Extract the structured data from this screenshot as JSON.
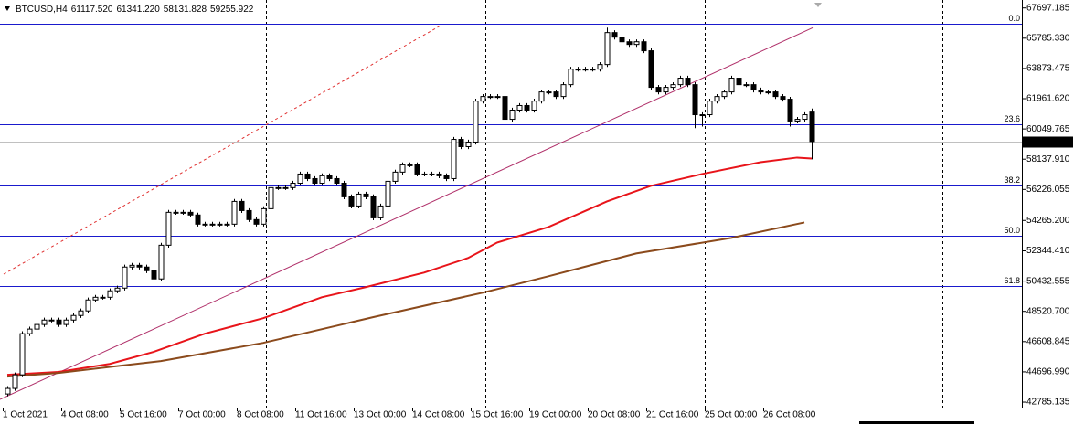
{
  "chart_data": {
    "type": "candlestick",
    "symbol": "BTCUSD,H4",
    "header_values": [
      {
        "value": 61117.52,
        "label": "61117.520"
      },
      {
        "value": 61341.22,
        "label": "61341.220"
      },
      {
        "value": 58131.828,
        "label": "58131.828"
      },
      {
        "value": 59255.922,
        "label": "59255.922"
      }
    ],
    "categories": [
      "1 Oct 2021",
      null,
      null,
      null,
      null,
      null,
      null,
      null,
      "4 Oct 08:00",
      null,
      null,
      null,
      null,
      null,
      null,
      null,
      "5 Oct 16:00",
      null,
      null,
      null,
      null,
      null,
      null,
      null,
      "7 Oct 00:00",
      null,
      null,
      null,
      null,
      null,
      null,
      null,
      "8 Oct 08:00",
      null,
      null,
      null,
      null,
      null,
      null,
      null,
      "11 Oct 16:00",
      null,
      null,
      null,
      null,
      null,
      null,
      null,
      "13 Oct 00:00",
      null,
      null,
      null,
      null,
      null,
      null,
      null,
      "14 Oct 08:00",
      null,
      null,
      null,
      null,
      null,
      null,
      null,
      "15 Oct 16:00",
      null,
      null,
      null,
      null,
      null,
      null,
      null,
      "19 Oct 00:00",
      null,
      null,
      null,
      null,
      null,
      null,
      null,
      "20 Oct 08:00",
      null,
      null,
      null,
      null,
      null,
      null,
      null,
      "21 Oct 16:00",
      null,
      null,
      null,
      null,
      null,
      null,
      null,
      "25 Oct 00:00",
      null,
      null,
      null,
      null,
      null,
      null,
      null,
      "26 Oct 08:00",
      null,
      null,
      null,
      null,
      null,
      null
    ],
    "open": [
      43300,
      43650,
      44510,
      47110,
      47400,
      47690,
      47970,
      47970,
      47690,
      47970,
      48260,
      48550,
      49240,
      49410,
      49410,
      49820,
      49990,
      51320,
      51430,
      51320,
      51090,
      50570,
      52700,
      54780,
      54780,
      54780,
      54610,
      54030,
      54030,
      54030,
      54030,
      54030,
      55470,
      54890,
      54320,
      54030,
      55010,
      56340,
      56340,
      56340,
      56620,
      57200,
      56910,
      56620,
      57090,
      56910,
      56620,
      55760,
      55180,
      55930,
      55760,
      54430,
      55180,
      56740,
      57320,
      57780,
      57780,
      57200,
      57200,
      57200,
      57090,
      56910,
      59390,
      58930,
      59220,
      61810,
      62100,
      62100,
      62100,
      60660,
      61240,
      61530,
      61240,
      61810,
      62390,
      62390,
      62100,
      62850,
      63830,
      63830,
      63830,
      63830,
      64120,
      66140,
      65850,
      65560,
      65390,
      65560,
      64990,
      62680,
      62390,
      62680,
      62850,
      63260,
      62850,
      60950,
      60950,
      61810,
      62100,
      62390,
      63260,
      62850,
      62850,
      62510,
      62390,
      62390,
      62100,
      61930,
      60550,
      60660,
      61117.52
    ],
    "high": [
      43800,
      44660,
      47260,
      47550,
      47840,
      48120,
      48120,
      48120,
      48120,
      48410,
      48700,
      49390,
      49560,
      49560,
      49970,
      50140,
      51470,
      51580,
      51580,
      51470,
      51240,
      52850,
      54930,
      54930,
      54930,
      54930,
      54760,
      54180,
      54180,
      54180,
      54180,
      55620,
      55620,
      55040,
      54470,
      55160,
      56490,
      56490,
      56490,
      56770,
      57350,
      57350,
      57060,
      57240,
      57240,
      57060,
      56770,
      55910,
      56080,
      56080,
      55910,
      55330,
      56890,
      57470,
      57930,
      57930,
      57930,
      57350,
      57350,
      57350,
      57240,
      59540,
      59540,
      59370,
      61960,
      62250,
      62250,
      62250,
      62250,
      61390,
      61680,
      61680,
      61960,
      62540,
      62540,
      62540,
      63000,
      63980,
      63980,
      63980,
      63980,
      64270,
      66450,
      66290,
      66000,
      65710,
      65710,
      65710,
      65140,
      62830,
      62830,
      63000,
      63410,
      63410,
      63000,
      61100,
      61960,
      62250,
      62540,
      63410,
      63410,
      63000,
      63000,
      62660,
      62540,
      62540,
      62250,
      62080,
      60810,
      61100,
      61341.22
    ],
    "low": [
      43150,
      43500,
      44360,
      46960,
      47250,
      47540,
      47820,
      47540,
      47540,
      47820,
      48110,
      48400,
      49090,
      49260,
      49260,
      49670,
      49840,
      51170,
      51170,
      50940,
      50420,
      50420,
      52550,
      54630,
      54630,
      54460,
      53880,
      53880,
      53880,
      53880,
      53880,
      53880,
      54740,
      54170,
      53880,
      53880,
      54860,
      56190,
      56190,
      56190,
      56470,
      56760,
      56470,
      56470,
      56760,
      56470,
      55610,
      55030,
      55030,
      55610,
      54280,
      54280,
      55030,
      56590,
      57170,
      57630,
      57050,
      57050,
      57050,
      56940,
      56760,
      56760,
      58780,
      58780,
      59070,
      61660,
      61950,
      61950,
      60510,
      60510,
      61090,
      61090,
      61090,
      61660,
      62240,
      61950,
      61950,
      62700,
      63680,
      63680,
      63680,
      63680,
      63970,
      65700,
      65410,
      65240,
      65240,
      64840,
      62530,
      62240,
      62240,
      62530,
      62700,
      62700,
      60100,
      60200,
      60800,
      61660,
      61950,
      62240,
      62700,
      62700,
      62360,
      62240,
      62240,
      61950,
      61780,
      60200,
      60400,
      60510,
      58131.828
    ],
    "close": [
      43650,
      44510,
      47110,
      47400,
      47690,
      47970,
      47970,
      47690,
      47970,
      48260,
      48550,
      49240,
      49410,
      49410,
      49820,
      49990,
      51320,
      51430,
      51320,
      51090,
      50570,
      52700,
      54780,
      54780,
      54780,
      54610,
      54030,
      54030,
      54030,
      54030,
      54030,
      55470,
      54890,
      54320,
      54030,
      55010,
      56340,
      56340,
      56340,
      56620,
      57200,
      56910,
      56620,
      57090,
      56910,
      56620,
      55760,
      55180,
      55930,
      55760,
      54430,
      55180,
      56740,
      57320,
      57780,
      57780,
      57200,
      57200,
      57200,
      57090,
      56910,
      59390,
      58930,
      59220,
      61810,
      62100,
      62100,
      62100,
      60660,
      61240,
      61530,
      61240,
      61810,
      62390,
      62390,
      62100,
      62850,
      63830,
      63830,
      63830,
      63830,
      64120,
      66140,
      65850,
      65560,
      65390,
      65560,
      64990,
      62680,
      62390,
      62680,
      62850,
      63260,
      62850,
      60950,
      60950,
      61810,
      62100,
      62390,
      63260,
      62850,
      62850,
      62510,
      62390,
      62390,
      62100,
      61930,
      60550,
      60660,
      60950,
      59255.922
    ],
    "up_color": "#ffffff",
    "down_color": "#000000",
    "moving_averages": [
      {
        "color": "#e8141a",
        "x": [
          0,
          7,
          14,
          20,
          27,
          35,
          43,
          49,
          57,
          63,
          67,
          74,
          82,
          88,
          95,
          103,
          108,
          110
        ],
        "values": [
          44510,
          44690,
          45200,
          45960,
          47110,
          48090,
          49410,
          50050,
          50970,
          51890,
          52870,
          53850,
          55470,
          56450,
          57200,
          57950,
          58240,
          58180
        ]
      },
      {
        "color": "#8b4a1c",
        "x": [
          0,
          7,
          21,
          35,
          50,
          65,
          74,
          86,
          99,
          109
        ],
        "values": [
          44400,
          44630,
          45380,
          46530,
          48150,
          49700,
          50740,
          52180,
          53160,
          54140
        ]
      }
    ],
    "levels": [
      {
        "label": "0.0",
        "value": 66716
      },
      {
        "label": "23.6",
        "value": 60372
      },
      {
        "label": "38.2",
        "value": 56451
      },
      {
        "label": "50.0",
        "value": 53279
      },
      {
        "label": "61.8",
        "value": 50107
      }
    ],
    "level_color": "#1a1acd",
    "last_price": 59255.922,
    "ylim": [
      42440,
      68200
    ],
    "yticks": [
      67697.185,
      {
        "value": 65785.33,
        "label": "65785.330"
      },
      63873.475,
      {
        "value": 61961.62,
        "label": "61961.620"
      },
      60049.765,
      {
        "value": 58137.91,
        "label": "58137.910"
      },
      56226.055,
      {
        "value": 54265.2,
        "label": "54265.200"
      },
      {
        "value": 52344.41,
        "label": "52344.410"
      },
      50432.555,
      {
        "value": 48520.7,
        "label": "48520.700"
      },
      46608.845,
      {
        "value": 44696.99,
        "label": "44696.990"
      },
      42785.135
    ]
  }
}
